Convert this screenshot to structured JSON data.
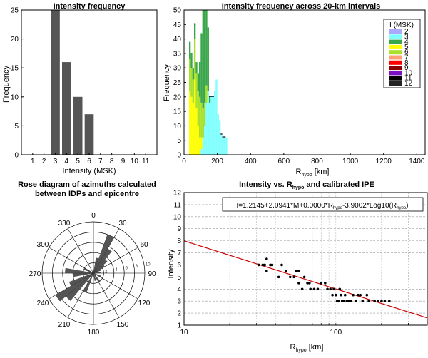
{
  "chart_data": [
    {
      "type": "bar",
      "title": "Intensity frequency",
      "xlabel": "Intensity (MSK)",
      "ylabel": "Frequency",
      "categories": [
        "1",
        "2",
        "3",
        "4",
        "5",
        "6",
        "7",
        "8",
        "9",
        "10",
        "11"
      ],
      "values": [
        0,
        0,
        25,
        16,
        10,
        7,
        0,
        0,
        0,
        0,
        0
      ],
      "ylim": [
        0,
        25
      ],
      "yticks": [
        "0",
        "5",
        "10",
        "15",
        "20",
        "25"
      ],
      "bar_color": "#555555"
    },
    {
      "type": "bar",
      "stacked": true,
      "title": "Intensity frequency across 20-km intervals",
      "xlabel_main": "R",
      "xlabel_sub": "hypo",
      "xlabel_unit": " [km]",
      "ylabel": "Frequency",
      "xlim": [
        0,
        1450
      ],
      "xticks": [
        "0",
        "200",
        "400",
        "600",
        "800",
        "1000",
        "1200",
        "1400"
      ],
      "ylim": [
        0,
        50
      ],
      "yticks": [
        "0",
        "5",
        "10",
        "15",
        "20",
        "25",
        "30",
        "35",
        "40",
        "45",
        "50"
      ],
      "legend": {
        "title": "I (MSK)",
        "entries": [
          {
            "label": "2",
            "color": "#a9a9ff"
          },
          {
            "label": "3",
            "color": "#80ffff"
          },
          {
            "label": "4",
            "color": "#3aa64a"
          },
          {
            "label": "5",
            "color": "#ffff00"
          },
          {
            "label": "6",
            "color": "#a8e02a"
          },
          {
            "label": "7",
            "color": "#ffa07a"
          },
          {
            "label": "8",
            "color": "#ff0000"
          },
          {
            "label": "9",
            "color": "#8b0000"
          },
          {
            "label": "10",
            "color": "#7b10c0"
          },
          {
            "label": "11",
            "color": "#000000"
          },
          {
            "label": "12",
            "color": "#222222"
          }
        ]
      },
      "bins": [
        {
          "x0": 30,
          "x1": 40,
          "segments": [
            {
              "i": "5",
              "v": 22
            },
            {
              "i": "6",
              "v": 11
            },
            {
              "i": "4",
              "v": 6
            }
          ]
        },
        {
          "x0": 40,
          "x1": 50,
          "segments": [
            {
              "i": "5",
              "v": 20
            },
            {
              "i": "6",
              "v": 10
            },
            {
              "i": "4",
              "v": 5
            }
          ]
        },
        {
          "x0": 50,
          "x1": 60,
          "segments": [
            {
              "i": "5",
              "v": 18
            },
            {
              "i": "6",
              "v": 8
            },
            {
              "i": "4",
              "v": 4
            }
          ]
        },
        {
          "x0": 60,
          "x1": 70,
          "segments": [
            {
              "i": "5",
              "v": 26
            },
            {
              "i": "6",
              "v": 14
            },
            {
              "i": "4",
              "v": 5
            },
            {
              "i": "11",
              "v": 0.4
            }
          ]
        },
        {
          "x0": 70,
          "x1": 80,
          "segments": [
            {
              "i": "5",
              "v": 16
            },
            {
              "i": "6",
              "v": 12
            },
            {
              "i": "4",
              "v": 4
            }
          ]
        },
        {
          "x0": 80,
          "x1": 90,
          "segments": [
            {
              "i": "5",
              "v": 10
            },
            {
              "i": "6",
              "v": 12
            },
            {
              "i": "4",
              "v": 6
            }
          ]
        },
        {
          "x0": 90,
          "x1": 100,
          "segments": [
            {
              "i": "5",
              "v": 6
            },
            {
              "i": "6",
              "v": 14
            },
            {
              "i": "4",
              "v": 12
            }
          ]
        },
        {
          "x0": 100,
          "x1": 110,
          "segments": [
            {
              "i": "3",
              "v": 2
            },
            {
              "i": "5",
              "v": 4
            },
            {
              "i": "6",
              "v": 12
            },
            {
              "i": "4",
              "v": 24
            }
          ]
        },
        {
          "x0": 110,
          "x1": 120,
          "segments": [
            {
              "i": "3",
              "v": 6
            },
            {
              "i": "6",
              "v": 10
            },
            {
              "i": "4",
              "v": 34
            }
          ]
        },
        {
          "x0": 120,
          "x1": 130,
          "segments": [
            {
              "i": "3",
              "v": 10
            },
            {
              "i": "6",
              "v": 8
            },
            {
              "i": "4",
              "v": 32
            }
          ]
        },
        {
          "x0": 130,
          "x1": 140,
          "segments": [
            {
              "i": "3",
              "v": 18
            },
            {
              "i": "6",
              "v": 6
            },
            {
              "i": "4",
              "v": 26
            }
          ]
        },
        {
          "x0": 140,
          "x1": 150,
          "segments": [
            {
              "i": "3",
              "v": 22
            },
            {
              "i": "4",
              "v": 22
            }
          ]
        },
        {
          "x0": 150,
          "x1": 160,
          "segments": [
            {
              "i": "3",
              "v": 18
            },
            {
              "i": "4",
              "v": 2
            },
            {
              "i": "11",
              "v": 0.4
            }
          ]
        },
        {
          "x0": 160,
          "x1": 170,
          "segments": [
            {
              "i": "3",
              "v": 20
            },
            {
              "i": "11",
              "v": 0.4
            }
          ]
        },
        {
          "x0": 170,
          "x1": 180,
          "segments": [
            {
              "i": "3",
              "v": 20
            },
            {
              "i": "11",
              "v": 0.4
            }
          ]
        },
        {
          "x0": 180,
          "x1": 190,
          "segments": [
            {
              "i": "3",
              "v": 22
            }
          ]
        },
        {
          "x0": 190,
          "x1": 200,
          "segments": [
            {
              "i": "3",
              "v": 26
            }
          ]
        },
        {
          "x0": 200,
          "x1": 210,
          "segments": [
            {
              "i": "3",
              "v": 14
            }
          ]
        },
        {
          "x0": 210,
          "x1": 220,
          "segments": [
            {
              "i": "3",
              "v": 12
            }
          ]
        },
        {
          "x0": 220,
          "x1": 230,
          "segments": [
            {
              "i": "3",
              "v": 7
            },
            {
              "i": "11",
              "v": 0.3
            }
          ]
        },
        {
          "x0": 230,
          "x1": 240,
          "segments": [
            {
              "i": "3",
              "v": 6
            },
            {
              "i": "11",
              "v": 0.3
            }
          ]
        },
        {
          "x0": 240,
          "x1": 250,
          "segments": [
            {
              "i": "3",
              "v": 6
            },
            {
              "i": "11",
              "v": 0.3
            }
          ]
        },
        {
          "x0": 250,
          "x1": 260,
          "segments": [
            {
              "i": "3",
              "v": 6
            }
          ]
        }
      ]
    },
    {
      "type": "rose",
      "title_line1": "Rose diagram of azimuths calculated",
      "title_line2": "between  IDPs and epicentre",
      "angle_labels": [
        {
          "deg": 0,
          "label": "0"
        },
        {
          "deg": 30,
          "label": "30"
        },
        {
          "deg": 60,
          "label": "60"
        },
        {
          "deg": 90,
          "label": "90"
        },
        {
          "deg": 120,
          "label": "120"
        },
        {
          "deg": 150,
          "label": "150"
        },
        {
          "deg": 180,
          "label": "180"
        },
        {
          "deg": 210,
          "label": "210"
        },
        {
          "deg": 240,
          "label": "240"
        },
        {
          "deg": 270,
          "label": "270"
        },
        {
          "deg": 300,
          "label": "300"
        },
        {
          "deg": 330,
          "label": "330"
        }
      ],
      "radial_max": 10,
      "radial_labels": [
        {
          "value": 2,
          "label": "2"
        },
        {
          "value": 4,
          "label": "4"
        },
        {
          "value": 6,
          "label": "6"
        },
        {
          "value": 8,
          "label": "8"
        },
        {
          "value": 10,
          "label": "10"
        }
      ],
      "sector_width_deg": 10,
      "sectors": [
        {
          "deg": 15,
          "value": 3
        },
        {
          "deg": 25,
          "value": 8
        },
        {
          "deg": 35,
          "value": 5.5
        },
        {
          "deg": 45,
          "value": 3.5
        },
        {
          "deg": 55,
          "value": 2.5
        },
        {
          "deg": 65,
          "value": 1.5
        },
        {
          "deg": 85,
          "value": 1.5
        },
        {
          "deg": 115,
          "value": 1.5
        },
        {
          "deg": 145,
          "value": 2
        },
        {
          "deg": 165,
          "value": 1.5
        },
        {
          "deg": 205,
          "value": 4
        },
        {
          "deg": 225,
          "value": 7
        },
        {
          "deg": 235,
          "value": 8.5
        },
        {
          "deg": 245,
          "value": 5
        },
        {
          "deg": 265,
          "value": 4
        },
        {
          "deg": 275,
          "value": 5.5
        },
        {
          "deg": 295,
          "value": 2
        }
      ],
      "fill": "#555555"
    },
    {
      "type": "scatter",
      "xscale": "log",
      "title_main": "Intensity vs. R",
      "title_sub": "hypo",
      "title_tail": " and calibrated IPE",
      "xlabel_main": "R",
      "xlabel_sub": "hypo",
      "xlabel_unit": " [km]",
      "ylabel": "Intensity",
      "xlim": [
        10,
        400
      ],
      "xticks": [
        {
          "value": 10,
          "label": "10"
        },
        {
          "value": 100,
          "label": "100"
        }
      ],
      "ylim": [
        1,
        12
      ],
      "yticks": [
        "1",
        "2",
        "3",
        "4",
        "5",
        "6",
        "7",
        "8",
        "9",
        "10",
        "11",
        "12"
      ],
      "equation": {
        "p1": "I=1.2145+2.0941*M+0.0000*R",
        "s1": "hypo",
        "p2": "-3.9002*Log10(R",
        "s2": "hypo",
        "p3": ")"
      },
      "line_color": "#cc0000",
      "fit_line": [
        {
          "x": 10,
          "y": 8.0
        },
        {
          "x": 400,
          "y": 1.6
        }
      ],
      "points": [
        {
          "x": 31,
          "y": 6
        },
        {
          "x": 33,
          "y": 6
        },
        {
          "x": 34,
          "y": 6
        },
        {
          "x": 35,
          "y": 6.5
        },
        {
          "x": 35,
          "y": 5.5
        },
        {
          "x": 37,
          "y": 6
        },
        {
          "x": 38,
          "y": 6
        },
        {
          "x": 42,
          "y": 5
        },
        {
          "x": 44,
          "y": 6
        },
        {
          "x": 47,
          "y": 5.5
        },
        {
          "x": 50,
          "y": 5
        },
        {
          "x": 53,
          "y": 5
        },
        {
          "x": 55,
          "y": 5.5
        },
        {
          "x": 57,
          "y": 5.5
        },
        {
          "x": 57,
          "y": 4.5
        },
        {
          "x": 60,
          "y": 4
        },
        {
          "x": 62,
          "y": 5
        },
        {
          "x": 65,
          "y": 4.5
        },
        {
          "x": 67,
          "y": 4.5
        },
        {
          "x": 68,
          "y": 4
        },
        {
          "x": 72,
          "y": 4
        },
        {
          "x": 76,
          "y": 4
        },
        {
          "x": 80,
          "y": 4.5
        },
        {
          "x": 85,
          "y": 4.5
        },
        {
          "x": 88,
          "y": 4
        },
        {
          "x": 92,
          "y": 4
        },
        {
          "x": 95,
          "y": 3.5
        },
        {
          "x": 97,
          "y": 4
        },
        {
          "x": 100,
          "y": 3.5
        },
        {
          "x": 102,
          "y": 3
        },
        {
          "x": 104,
          "y": 3
        },
        {
          "x": 106,
          "y": 4
        },
        {
          "x": 108,
          "y": 3.5
        },
        {
          "x": 110,
          "y": 3
        },
        {
          "x": 112,
          "y": 3
        },
        {
          "x": 115,
          "y": 3.5
        },
        {
          "x": 118,
          "y": 3
        },
        {
          "x": 122,
          "y": 3
        },
        {
          "x": 126,
          "y": 3
        },
        {
          "x": 130,
          "y": 3.5
        },
        {
          "x": 135,
          "y": 3
        },
        {
          "x": 140,
          "y": 3.5
        },
        {
          "x": 145,
          "y": 3.5
        },
        {
          "x": 150,
          "y": 3
        },
        {
          "x": 160,
          "y": 3.5
        },
        {
          "x": 165,
          "y": 3
        },
        {
          "x": 180,
          "y": 3
        },
        {
          "x": 190,
          "y": 3
        },
        {
          "x": 200,
          "y": 3
        },
        {
          "x": 210,
          "y": 3
        },
        {
          "x": 225,
          "y": 3
        }
      ]
    }
  ]
}
